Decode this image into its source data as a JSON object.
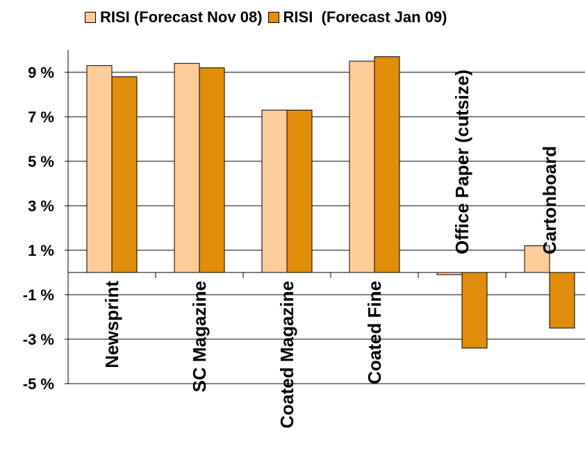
{
  "chart_data": {
    "type": "bar",
    "title": "",
    "xlabel": "",
    "ylabel": "",
    "categories": [
      "Newsprint",
      "SC Magazine",
      "Coated Magazine",
      "Coated Fine",
      "Office Paper (cutsize)",
      "Cartonboard"
    ],
    "series": [
      {
        "name": "RISI (Forecast Nov 08)",
        "color": "#FFCC99",
        "values": [
          9.3,
          9.4,
          7.3,
          9.5,
          -0.1,
          1.2
        ]
      },
      {
        "name": "RISI  (Forecast Jan 09)",
        "color": "#E08D0B",
        "values": [
          8.8,
          9.2,
          7.3,
          9.7,
          -3.4,
          -2.5
        ]
      }
    ],
    "ylim": [
      -5,
      10
    ],
    "yticks": [
      9,
      7,
      5,
      3,
      1,
      -1,
      -3,
      -5
    ],
    "ytick_labels": [
      "9 %",
      "7 %",
      "5 %",
      "3 %",
      "1 %",
      "-1 %",
      "-3 %",
      "-5 %"
    ],
    "grid": true,
    "legend_position": "top"
  }
}
